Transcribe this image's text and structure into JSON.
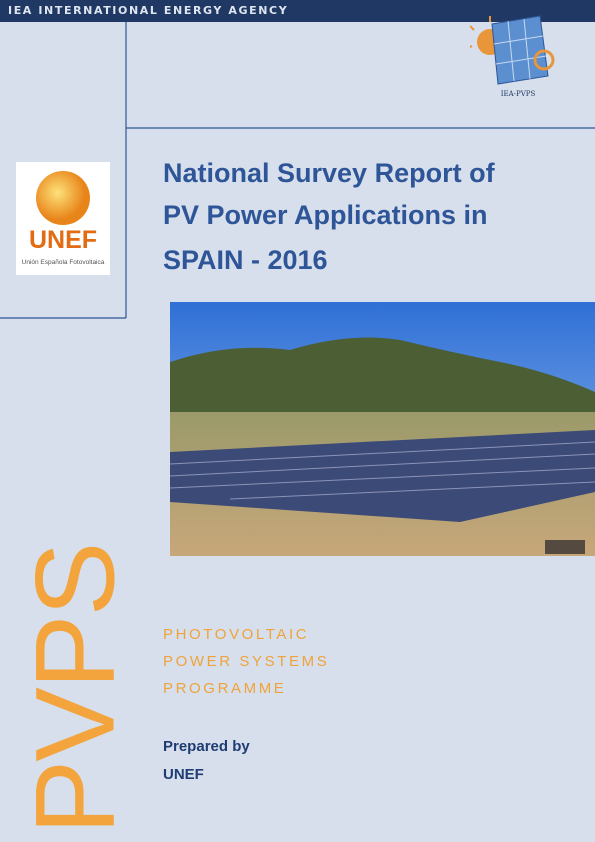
{
  "header": {
    "agency": "IEA INTERNATIONAL ENERGY AGENCY",
    "logo_text": "IEA-PVPS"
  },
  "partner_logo": {
    "name": "UNEF",
    "subtitle": "Unión Española Fotovoltaica"
  },
  "title": {
    "lines": [
      "National Survey Report of",
      "PV Power Applications in",
      "SPAIN - 2016"
    ]
  },
  "side_mark": "PVPS",
  "programme": {
    "lines": [
      "PHOTOVOLTAIC",
      "POWER SYSTEMS",
      "PROGRAMME"
    ]
  },
  "prepared": {
    "label": "Prepared by",
    "by": "UNEF"
  }
}
